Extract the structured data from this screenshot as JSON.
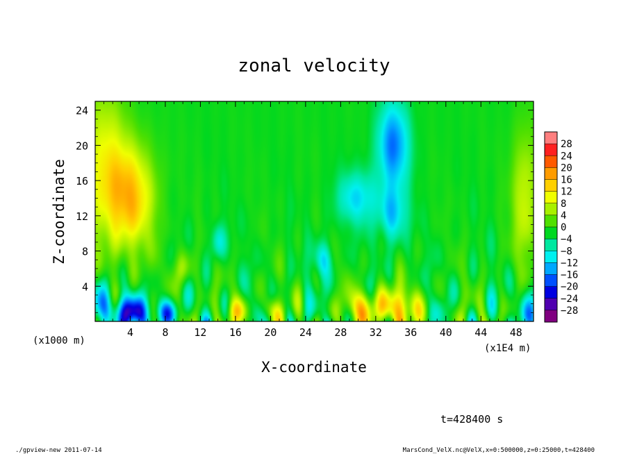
{
  "chart_data": {
    "type": "heatmap",
    "title": "zonal velocity",
    "xlabel": "X-coordinate",
    "ylabel": "Z-coordinate",
    "x_unit_left": "(x1000 m)",
    "x_unit_right": "(x1E4 m)",
    "x_ticks": [
      "4",
      "8",
      "12",
      "16",
      "20",
      "24",
      "28",
      "32",
      "36",
      "40",
      "44",
      "48"
    ],
    "x_tick_values": [
      4,
      8,
      12,
      16,
      20,
      24,
      28,
      32,
      36,
      40,
      44,
      48
    ],
    "xlim": [
      0,
      50
    ],
    "y_ticks": [
      "4",
      "8",
      "12",
      "16",
      "20",
      "24"
    ],
    "y_tick_values": [
      4,
      8,
      12,
      16,
      20,
      24
    ],
    "ylim": [
      0,
      25
    ],
    "colorbar": {
      "labels": [
        "28",
        "24",
        "20",
        "16",
        "12",
        "8",
        "4",
        "0",
        "−4",
        "−8",
        "−12",
        "−16",
        "−20",
        "−24",
        "−28"
      ],
      "colors": [
        "#ff7f7f",
        "#ff2020",
        "#ff5a00",
        "#ff9c00",
        "#ffd000",
        "#f0ff00",
        "#a8f000",
        "#50e000",
        "#00d820",
        "#00e8a0",
        "#00f0f0",
        "#00a8ff",
        "#0050ff",
        "#0000e0",
        "#5000b0",
        "#800080"
      ]
    },
    "features": [
      {
        "x": 4,
        "z": 14,
        "v": 17,
        "sx": 2.8,
        "sz": 6
      },
      {
        "x": 1,
        "z": 18,
        "v": 11,
        "sx": 2.5,
        "sz": 9
      },
      {
        "x": 49,
        "z": 14,
        "v": 10,
        "sx": 1.5,
        "sz": 8
      },
      {
        "x": 34,
        "z": 20,
        "v": -16,
        "sx": 1.8,
        "sz": 5
      },
      {
        "x": 30,
        "z": 14,
        "v": -10,
        "sx": 2.5,
        "sz": 3
      },
      {
        "x": 34,
        "z": 12,
        "v": -11,
        "sx": 1.5,
        "sz": 3
      },
      {
        "x": 4,
        "z": 1,
        "v": -22,
        "sx": 2,
        "sz": 1.8
      },
      {
        "x": 0.5,
        "z": 1.5,
        "v": -14,
        "sx": 1.2,
        "sz": 3
      },
      {
        "x": 49.5,
        "z": 1.5,
        "v": -12,
        "sx": 1,
        "sz": 3
      },
      {
        "x": 8,
        "z": 1,
        "v": -16,
        "sx": 1.2,
        "sz": 1.5
      },
      {
        "x": 34,
        "z": 1.5,
        "v": 18,
        "sx": 2.5,
        "sz": 2.2
      },
      {
        "x": 30,
        "z": 1.5,
        "v": 13,
        "sx": 1.5,
        "sz": 2
      },
      {
        "x": 16,
        "z": 1.2,
        "v": 10,
        "sx": 1.2,
        "sz": 1.5
      },
      {
        "x": 20,
        "z": 1.2,
        "v": 9,
        "sx": 1.2,
        "sz": 1.5
      },
      {
        "x": 26,
        "z": 7,
        "v": -10,
        "sx": 1,
        "sz": 2
      },
      {
        "x": 14,
        "z": 9,
        "v": -9,
        "sx": 0.8,
        "sz": 2
      },
      {
        "x": 10,
        "z": 6,
        "v": 8,
        "sx": 1,
        "sz": 2
      }
    ],
    "annotation": "t=428400 s"
  },
  "footer": {
    "left": "./gpview-new   2011-07-14",
    "right": "MarsCond_VelX.nc@VelX,x=0:500000,z=0:25000,t=428400"
  }
}
